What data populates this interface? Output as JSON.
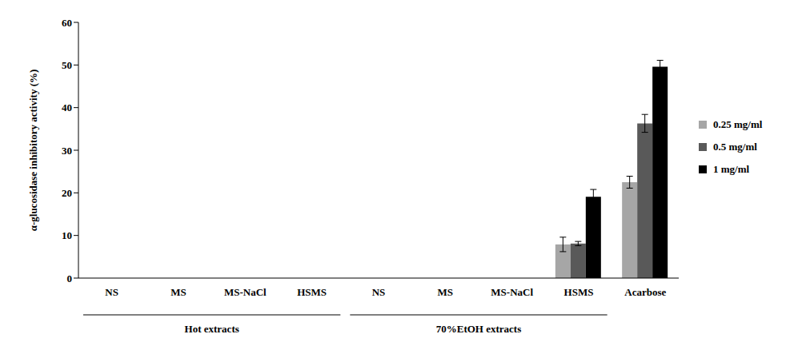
{
  "chart_data": {
    "type": "bar",
    "y_label": "α-glucosidase inhibitory activity (%)",
    "categories": [
      "NS",
      "MS",
      "MS-NaCl",
      "HSMS",
      "NS",
      "MS",
      "MS-NaCl",
      "HSMS",
      "Acarbose"
    ],
    "groups": [
      {
        "label": "Hot extracts",
        "start": 0,
        "end": 3
      },
      {
        "label": "70%EtOH extracts",
        "start": 4,
        "end": 7
      }
    ],
    "series": [
      {
        "name": "0.25 mg/ml",
        "color": "#a6a6a6",
        "values": [
          0,
          0,
          0,
          0,
          0,
          0,
          0,
          7.9,
          22.5
        ],
        "errors": [
          0,
          0,
          0,
          0,
          0,
          0,
          0,
          1.7,
          1.4
        ]
      },
      {
        "name": "0.5 mg/ml",
        "color": "#595959",
        "values": [
          0,
          0,
          0,
          0,
          0,
          0,
          0,
          8.1,
          36.3
        ],
        "errors": [
          0,
          0,
          0,
          0,
          0,
          0,
          0.7,
          0.5,
          2.1
        ]
      },
      {
        "name": "1 mg/ml",
        "color": "#000000",
        "values": [
          0,
          0,
          0,
          0,
          0,
          0,
          0,
          19.1,
          49.6
        ],
        "errors": [
          0,
          0,
          0,
          0.5,
          0,
          1,
          0.5,
          1.7,
          1.5
        ]
      }
    ],
    "ylim": [
      0,
      60
    ],
    "yticks": [
      0,
      10,
      20,
      30,
      40,
      50,
      60
    ],
    "grid": false,
    "legend": "right"
  }
}
